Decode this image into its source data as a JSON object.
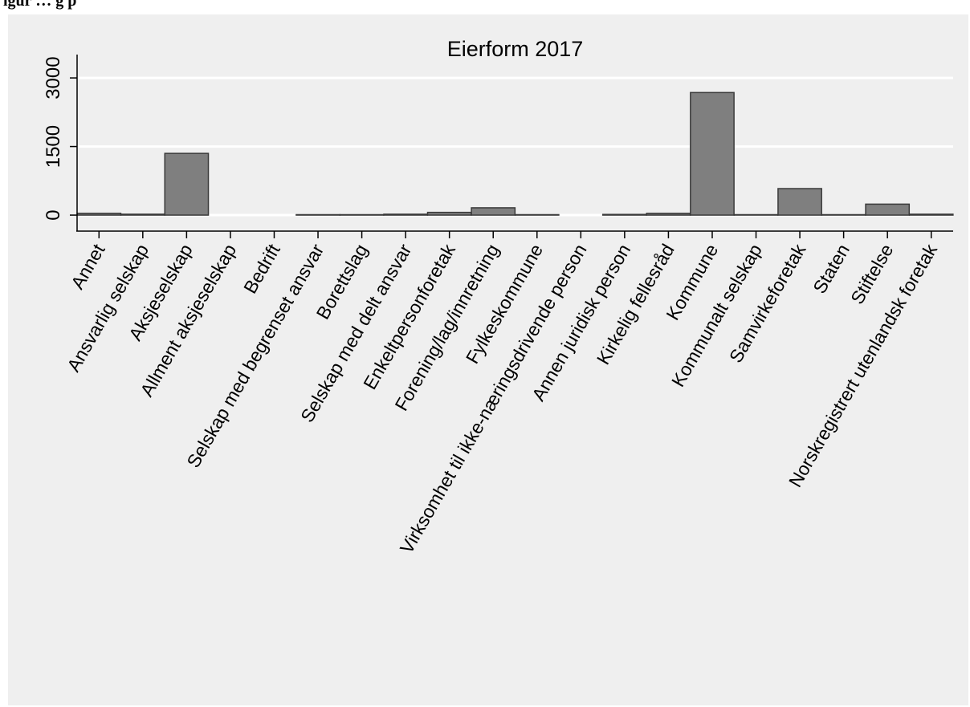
{
  "header": {
    "caption": "igur         …    g p"
  },
  "colors": {
    "background": "#efefef",
    "bar_fill": "#7f7f7f",
    "bar_stroke": "#3a3a3a",
    "gridline": "#ffffff",
    "axis": "#000000"
  },
  "chart_data": {
    "type": "bar",
    "title": "Eierform 2017",
    "xlabel": "",
    "ylabel": "",
    "ylim": [
      -350,
      3300
    ],
    "yticks": [
      0,
      1500,
      3000
    ],
    "grid": true,
    "legend": "none",
    "categories": [
      "Annet",
      "Ansvarlig selskap",
      "Aksjeselskap",
      "Allment aksjeselskap",
      "Bedrift",
      "Selskap med begrenset ansvar",
      "Borettslag",
      "Selskap med delt ansvar",
      "Enkeltpersonforetak",
      "Forening/lag/innretning",
      "Fylkeskommune",
      "Virksomhet til ikke-næringsdrivende person",
      "Annen juridisk person",
      "Kirkelig fellesråd",
      "Kommune",
      "Kommunalt selskap",
      "Samvirkeforetak",
      "Staten",
      "Stiftelse",
      "Norskregistrert utenlandsk foretak"
    ],
    "values": [
      40,
      20,
      1350,
      0,
      0,
      10,
      10,
      20,
      60,
      160,
      10,
      0,
      15,
      40,
      2680,
      10,
      580,
      10,
      240,
      20
    ]
  }
}
